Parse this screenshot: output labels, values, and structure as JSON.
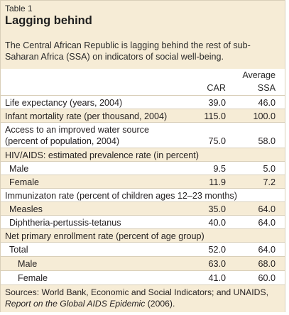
{
  "table": {
    "label": "Table 1",
    "title": "Lagging behind",
    "subtitle": "The Central African Republic is lagging behind the rest of sub-Saharan Africa (SSA) on indicators of social well-being.",
    "col_header_car": "CAR",
    "col_header_avg": "Average",
    "col_header_ssa": "SSA",
    "rows": [
      {
        "label": "Life expectancy (years, 2004)",
        "car": "39.0",
        "ssa": "46.0"
      },
      {
        "label": "Infant mortality rate (per thousand, 2004)",
        "car": "115.0",
        "ssa": "100.0"
      },
      {
        "label": "Access to an improved water source",
        "label2": "(percent of population, 2004)",
        "car": "75.0",
        "ssa": "58.0"
      },
      {
        "label": "HIV/AIDS: estimated prevalence rate (in percent)"
      },
      {
        "label": "Male",
        "car": "9.5",
        "ssa": "5.0"
      },
      {
        "label": "Female",
        "car": "11.9",
        "ssa": "7.2"
      },
      {
        "label": "Immunizaton rate (percent of children ages 12–23 months)"
      },
      {
        "label": "Measles",
        "car": "35.0",
        "ssa": "64.0"
      },
      {
        "label": "Diphtheria-pertussis-tetanus",
        "car": "40.0",
        "ssa": "64.0"
      },
      {
        "label": "Net primary enrollment rate (percent of age group)"
      },
      {
        "label": "Total",
        "car": "52.0",
        "ssa": "64.0"
      },
      {
        "label": "Male",
        "car": "63.0",
        "ssa": "68.0"
      },
      {
        "label": "Female",
        "car": "41.0",
        "ssa": "60.0"
      }
    ],
    "source_line1": "Sources: World Bank, Economic and Social Indicators; and UNAIDS,",
    "source_line2_italic": "Report on the Global AIDS Epidemic",
    "source_line2_rest": " (2006)."
  }
}
